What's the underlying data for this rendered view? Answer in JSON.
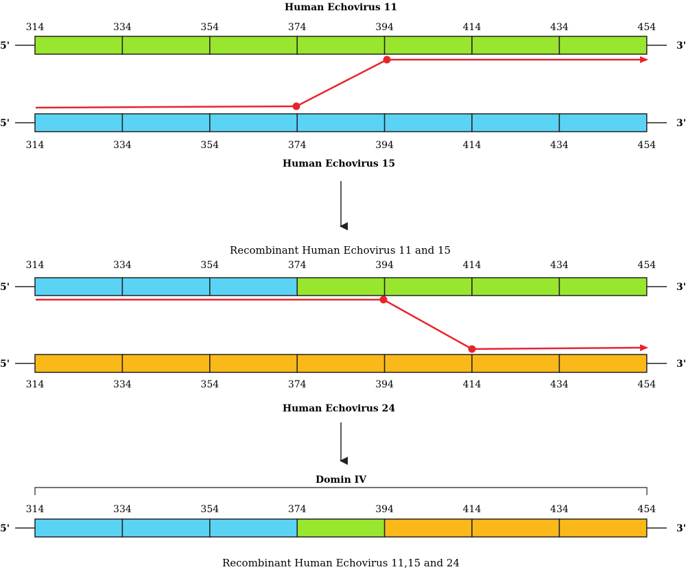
{
  "colors": {
    "echovirus11": "#99e62e",
    "echovirus15": "#5ad3f5",
    "echovirus24": "#fbb819",
    "crossover": "#e8242b",
    "line": "#222222"
  },
  "positions": [
    "314",
    "334",
    "354",
    "374",
    "394",
    "414",
    "434",
    "454"
  ],
  "end_labels": {
    "five_prime": "5'",
    "three_prime": "3'"
  },
  "section1": {
    "title": "Human Echovirus 11",
    "top_strand": [
      "echovirus11",
      "echovirus11",
      "echovirus11",
      "echovirus11",
      "echovirus11",
      "echovirus11",
      "echovirus11"
    ],
    "bottom_strand": [
      "echovirus15",
      "echovirus15",
      "echovirus15",
      "echovirus15",
      "echovirus15",
      "echovirus15",
      "echovirus15"
    ],
    "bottom_label": "Human Echovirus 15",
    "crossover_points": [
      "374",
      "394"
    ]
  },
  "section2": {
    "title": "Recombinant Human Echovirus 11 and 15",
    "top_strand": [
      "echovirus15",
      "echovirus15",
      "echovirus15",
      "echovirus11",
      "echovirus11",
      "echovirus11",
      "echovirus11"
    ],
    "bottom_strand": [
      "echovirus24",
      "echovirus24",
      "echovirus24",
      "echovirus24",
      "echovirus24",
      "echovirus24",
      "echovirus24"
    ],
    "bottom_label": "Human Echovirus 24",
    "crossover_points": [
      "394",
      "414"
    ]
  },
  "section3": {
    "bracket_label": "Domin IV",
    "strand": [
      "echovirus15",
      "echovirus15",
      "echovirus15",
      "echovirus11",
      "echovirus24",
      "echovirus24",
      "echovirus24"
    ],
    "caption": "Recombinant Human Echovirus 11,15 and 24"
  }
}
